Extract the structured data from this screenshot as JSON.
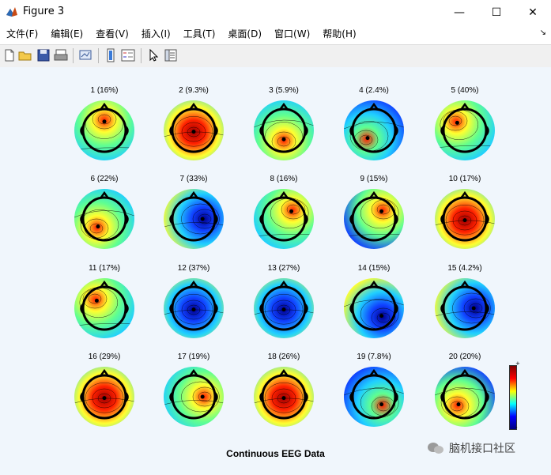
{
  "window": {
    "title": "Figure 3",
    "minimize": "—",
    "maximize": "☐",
    "close": "✕"
  },
  "menu": {
    "items": [
      "文件(F)",
      "编辑(E)",
      "查看(V)",
      "插入(I)",
      "工具(T)",
      "桌面(D)",
      "窗口(W)",
      "帮助(H)"
    ],
    "corner_glyph": "↘"
  },
  "toolbar": {
    "buttons": [
      "new-figure-icon",
      "open-file-icon",
      "save-icon",
      "print-icon",
      "link-plot-icon",
      "colorbar-icon",
      "legend-icon",
      "pointer-icon",
      "property-editor-icon"
    ]
  },
  "figure": {
    "title": "Continuous EEG Data",
    "colorbar": {
      "top": "+",
      "bottom": "-"
    },
    "components": [
      {
        "label": "1 (16%)",
        "hot": "top",
        "tone": "warm"
      },
      {
        "label": "2 (9.3%)",
        "hot": "center",
        "tone": "hot"
      },
      {
        "label": "3 (5.9%)",
        "hot": "bottom",
        "tone": "warm"
      },
      {
        "label": "4 (2.4%)",
        "hot": "bottom-left",
        "tone": "cool"
      },
      {
        "label": "5 (40%)",
        "hot": "top-left",
        "tone": "warm"
      },
      {
        "label": "6 (22%)",
        "hot": "bottom-left",
        "tone": "warm"
      },
      {
        "label": "7 (33%)",
        "hot": "right",
        "tone": "cold"
      },
      {
        "label": "8 (16%)",
        "hot": "top-right",
        "tone": "warm"
      },
      {
        "label": "9 (15%)",
        "hot": "top-right",
        "tone": "mild"
      },
      {
        "label": "10 (17%)",
        "hot": "center",
        "tone": "hot"
      },
      {
        "label": "11 (17%)",
        "hot": "top-left",
        "tone": "warm"
      },
      {
        "label": "12 (37%)",
        "hot": "center",
        "tone": "cold"
      },
      {
        "label": "13 (27%)",
        "hot": "center",
        "tone": "cold"
      },
      {
        "label": "14 (15%)",
        "hot": "bottom-right",
        "tone": "cold"
      },
      {
        "label": "15 (4.2%)",
        "hot": "right",
        "tone": "cold"
      },
      {
        "label": "16 (29%)",
        "hot": "center",
        "tone": "hot"
      },
      {
        "label": "17 (19%)",
        "hot": "right",
        "tone": "warm"
      },
      {
        "label": "18 (26%)",
        "hot": "center",
        "tone": "hot"
      },
      {
        "label": "19 (7.8%)",
        "hot": "bottom-right",
        "tone": "cool"
      },
      {
        "label": "20 (20%)",
        "hot": "bottom-left",
        "tone": "mild"
      }
    ]
  },
  "watermark": {
    "text": "脑机接口社区"
  },
  "colors": {
    "figure_bg": "#f0f6fc",
    "deep_red": "#a00000",
    "red": "#ff2000",
    "yellow": "#ffff30",
    "green": "#60ff90",
    "cyan": "#20d0ff",
    "blue": "#1040ff",
    "deep_blue": "#000090"
  }
}
